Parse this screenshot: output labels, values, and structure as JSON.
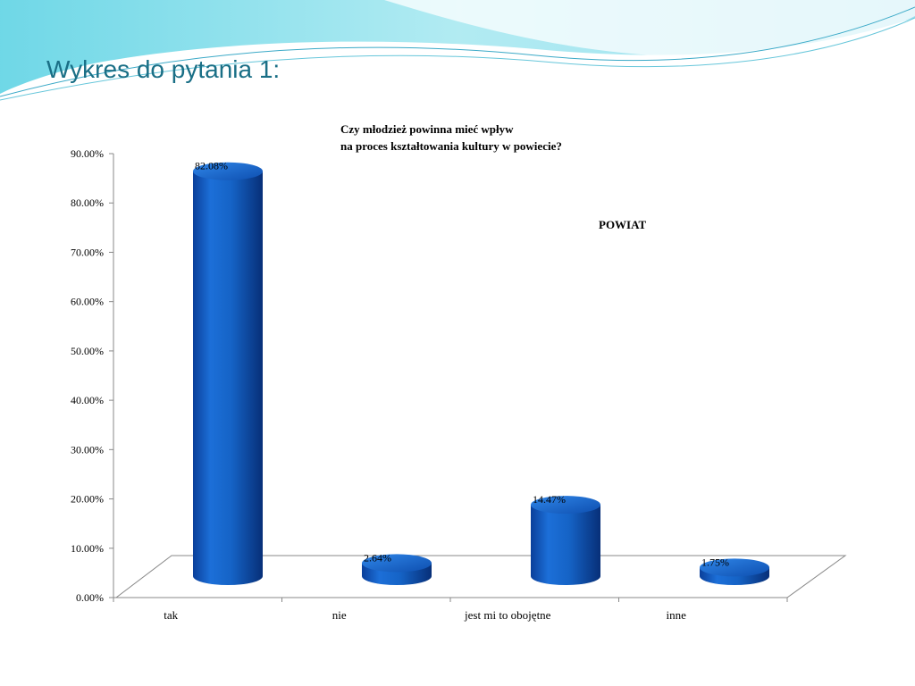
{
  "slide": {
    "title": "Wykres do pytania 1:",
    "accent_colors": [
      "#7fdce8",
      "#4fc3da",
      "#bfeff4"
    ]
  },
  "chart_data": {
    "type": "bar",
    "title_lines": [
      "Czy młodzież powinna mieć wpływ",
      "na proces kształtowania kultury w powiecie?"
    ],
    "series": [
      {
        "name": "POWIAT",
        "values": [
          82.08,
          2.64,
          14.47,
          1.75
        ],
        "color": "#1565c0"
      }
    ],
    "categories": [
      "tak",
      "nie",
      "jest mi to obojętne",
      "inne"
    ],
    "data_labels": [
      "82.08%",
      "2.64%",
      "14.47%",
      "1.75%"
    ],
    "yticks": [
      "0.00%",
      "10.00%",
      "20.00%",
      "30.00%",
      "40.00%",
      "50.00%",
      "60.00%",
      "70.00%",
      "80.00%",
      "90.00%"
    ],
    "ylim": [
      0,
      90
    ],
    "xlabel": "",
    "ylabel": "",
    "grid": false,
    "legend_position": "right"
  }
}
